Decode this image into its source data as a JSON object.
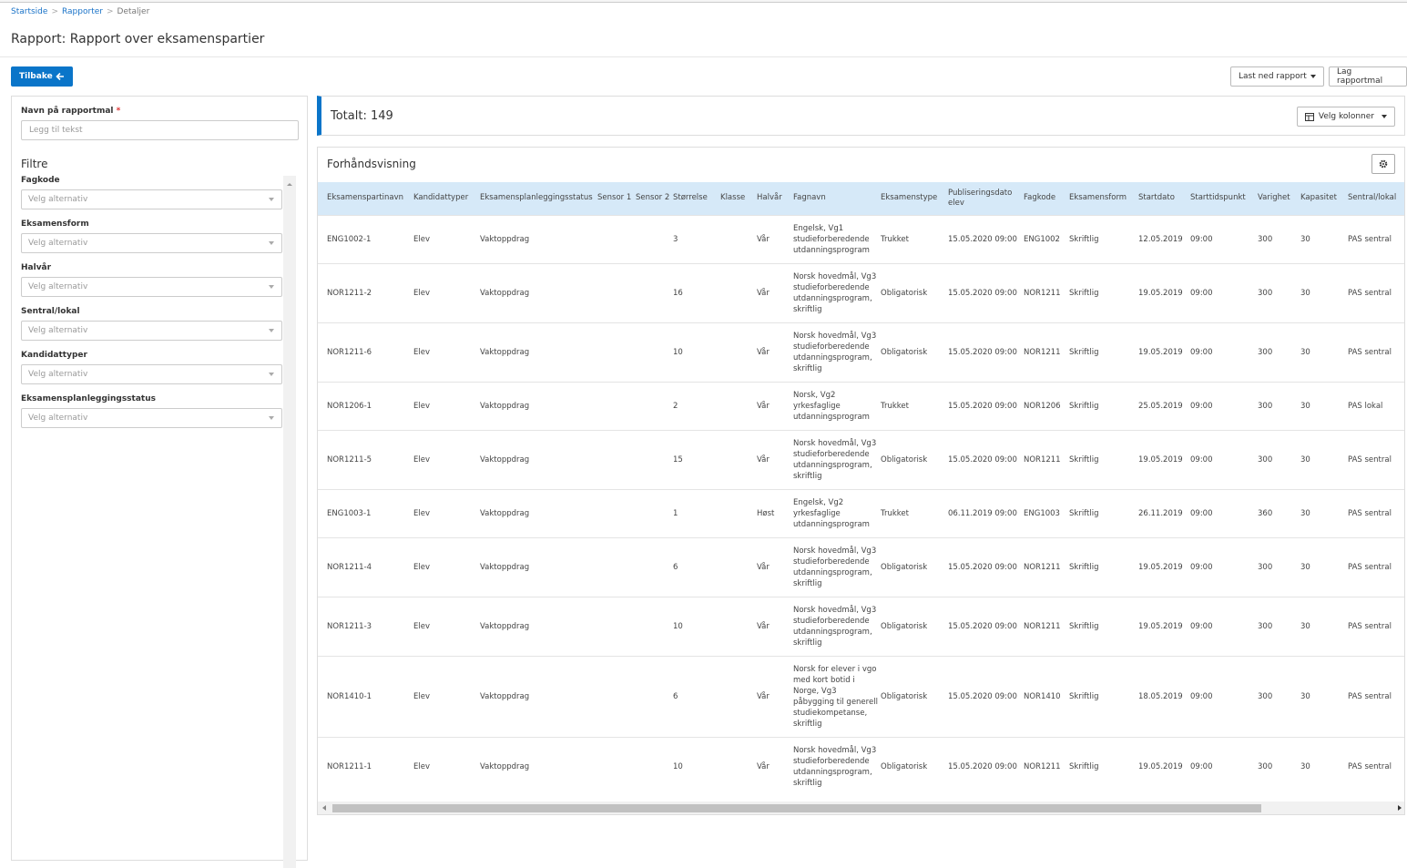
{
  "breadcrumb": [
    "Startside",
    "Rapporter",
    "Detaljer"
  ],
  "title": "Rapport: Rapport over eksamenspartier",
  "buttons": {
    "back": "Tilbake",
    "download": "Last ned rapport",
    "template": "Lag rapportmal",
    "columns": "Velg kolonner"
  },
  "form": {
    "name_label": "Navn på rapportmal",
    "required": "*",
    "name_placeholder": "Legg til tekst",
    "filters_title": "Filtre",
    "filters": [
      {
        "label": "Fagkode",
        "placeholder": "Velg alternativ"
      },
      {
        "label": "Eksamensform",
        "placeholder": "Velg alternativ"
      },
      {
        "label": "Halvår",
        "placeholder": "Velg alternativ"
      },
      {
        "label": "Sentral/lokal",
        "placeholder": "Velg alternativ"
      },
      {
        "label": "Kandidattyper",
        "placeholder": "Velg alternativ"
      },
      {
        "label": "Eksamensplanleggingsstatus",
        "placeholder": "Velg alternativ"
      }
    ]
  },
  "total_label": "Totalt:",
  "total": 149,
  "preview_title": "Forhåndsvisning",
  "table": {
    "columns": [
      "Eksamenspartinavn",
      "Kandidattyper",
      "Eksamensplanleggingsstatus",
      "Sensor 1",
      "Sensor 2",
      "Størrelse",
      "Klasse",
      "Halvår",
      "Fagnavn",
      "Eksamenstype",
      "Publiseringsdato elev",
      "Fagkode",
      "Eksamensform",
      "Startdato",
      "Starttidspunkt",
      "Varighet",
      "Kapasitet",
      "Sentral/lokal"
    ],
    "rows": [
      [
        "ENG1002-1",
        "Elev",
        "Vaktoppdrag",
        null,
        null,
        "3",
        null,
        "Vår",
        "Engelsk, Vg1 studieforberedende utdanningsprogram",
        "Trukket",
        "15.05.2020 09:00",
        "ENG1002",
        "Skriftlig",
        "12.05.2019",
        "09:00",
        "300",
        "30",
        "PAS sentral"
      ],
      [
        "NOR1211-2",
        "Elev",
        "Vaktoppdrag",
        null,
        null,
        "16",
        null,
        "Vår",
        "Norsk hovedmål, Vg3 studieforberedende utdanningsprogram, skriftlig",
        "Obligatorisk",
        "15.05.2020 09:00",
        "NOR1211",
        "Skriftlig",
        "19.05.2019",
        "09:00",
        "300",
        "30",
        "PAS sentral"
      ],
      [
        "NOR1211-6",
        "Elev",
        "Vaktoppdrag",
        null,
        null,
        "10",
        null,
        "Vår",
        "Norsk hovedmål, Vg3 studieforberedende utdanningsprogram, skriftlig",
        "Obligatorisk",
        "15.05.2020 09:00",
        "NOR1211",
        "Skriftlig",
        "19.05.2019",
        "09:00",
        "300",
        "30",
        "PAS sentral"
      ],
      [
        "NOR1206-1",
        "Elev",
        "Vaktoppdrag",
        null,
        null,
        "2",
        null,
        "Vår",
        "Norsk, Vg2 yrkesfaglige utdanningsprogram",
        "Trukket",
        "15.05.2020 09:00",
        "NOR1206",
        "Skriftlig",
        "25.05.2019",
        "09:00",
        "300",
        "30",
        "PAS lokal"
      ],
      [
        "NOR1211-5",
        "Elev",
        "Vaktoppdrag",
        null,
        null,
        "15",
        null,
        "Vår",
        "Norsk hovedmål, Vg3 studieforberedende utdanningsprogram, skriftlig",
        "Obligatorisk",
        "15.05.2020 09:00",
        "NOR1211",
        "Skriftlig",
        "19.05.2019",
        "09:00",
        "300",
        "30",
        "PAS sentral"
      ],
      [
        "ENG1003-1",
        "Elev",
        "Vaktoppdrag",
        null,
        null,
        "1",
        null,
        "Høst",
        "Engelsk, Vg2 yrkesfaglige utdanningsprogram",
        "Trukket",
        "06.11.2019 09:00",
        "ENG1003",
        "Skriftlig",
        "26.11.2019",
        "09:00",
        "360",
        "30",
        "PAS sentral"
      ],
      [
        "NOR1211-4",
        "Elev",
        "Vaktoppdrag",
        null,
        null,
        "6",
        null,
        "Vår",
        "Norsk hovedmål, Vg3 studieforberedende utdanningsprogram, skriftlig",
        "Obligatorisk",
        "15.05.2020 09:00",
        "NOR1211",
        "Skriftlig",
        "19.05.2019",
        "09:00",
        "300",
        "30",
        "PAS sentral"
      ],
      [
        "NOR1211-3",
        "Elev",
        "Vaktoppdrag",
        null,
        null,
        "10",
        null,
        "Vår",
        "Norsk hovedmål, Vg3 studieforberedende utdanningsprogram, skriftlig",
        "Obligatorisk",
        "15.05.2020 09:00",
        "NOR1211",
        "Skriftlig",
        "19.05.2019",
        "09:00",
        "300",
        "30",
        "PAS sentral"
      ],
      [
        "NOR1410-1",
        "Elev",
        "Vaktoppdrag",
        null,
        null,
        "6",
        null,
        "Vår",
        "Norsk for elever i vgo med kort botid i Norge, Vg3 påbygging til generell studiekompetanse, skriftlig",
        "Obligatorisk",
        "15.05.2020 09:00",
        "NOR1410",
        "Skriftlig",
        "18.05.2019",
        "09:00",
        "300",
        "30",
        "PAS sentral"
      ],
      [
        "NOR1211-1",
        "Elev",
        "Vaktoppdrag",
        null,
        null,
        "10",
        null,
        "Vår",
        "Norsk hovedmål, Vg3 studieforberedende utdanningsprogram, skriftlig",
        "Obligatorisk",
        "15.05.2020 09:00",
        "NOR1211",
        "Skriftlig",
        "19.05.2019",
        "09:00",
        "300",
        "30",
        "PAS sentral"
      ]
    ]
  }
}
